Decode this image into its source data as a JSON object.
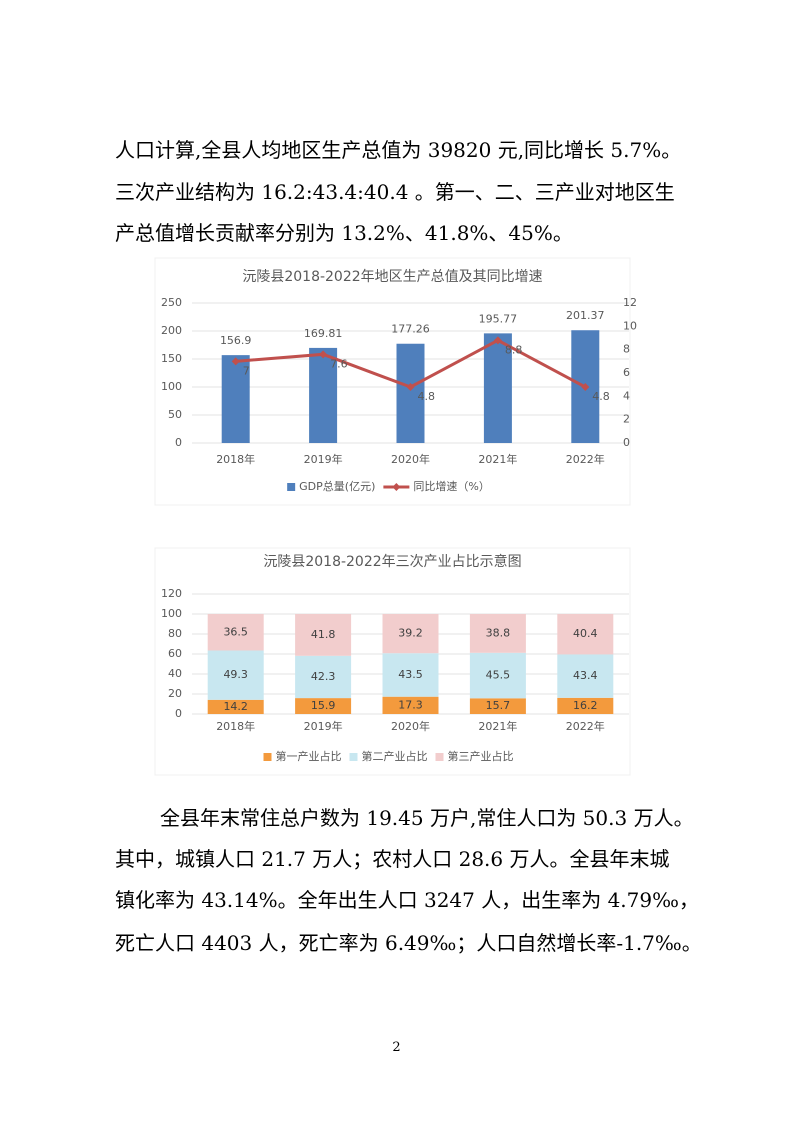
{
  "paragraphs": [
    [
      "人口计算,全县人均地区生产总值为 39820 元,同比增长 5.7%。",
      "三次产业结构为 16.2:43.4:40.4 。第一、二、三产业对地区生",
      "产总值增长贡献率分别为 13.2%、41.8%、45%。"
    ],
    [
      "全县年末常住总户数为 19.45 万户,常住人口为 50.3 万人。",
      "其中，城镇人口 21.7 万人；农村人口 28.6 万人。全县年末城",
      "镇化率为 43.14%。全年出生人口 3247 人，出生率为 4.79‰，",
      "死亡人口 4403 人，死亡率为 6.49‰；人口自然增长率-1.7‰。"
    ]
  ],
  "page_number": "2",
  "chart_data": [
    {
      "type": "bar",
      "title": "沅陵县2018-2022年地区生产总值及其同比增速",
      "categories": [
        "2018年",
        "2019年",
        "2020年",
        "2021年",
        "2022年"
      ],
      "series": [
        {
          "name": "GDP总量(亿元)",
          "color": "#4f7fbc",
          "values": [
            156.9,
            169.81,
            177.26,
            195.77,
            201.37
          ]
        },
        {
          "name": "同比增速（%）",
          "color": "#c0504d",
          "type": "line",
          "axis": "y2",
          "values": [
            7,
            7.6,
            4.8,
            8.8,
            4.8
          ]
        }
      ],
      "ylim": [
        0,
        250
      ],
      "yticks": [
        0,
        50,
        100,
        150,
        200,
        250
      ],
      "y2lim": [
        0,
        12
      ],
      "y2ticks": [
        0,
        2,
        4,
        6,
        8,
        10,
        12
      ],
      "legend": "bottom"
    },
    {
      "type": "stacked-bar",
      "title": "沅陵县2018-2022年三次产业占比示意图",
      "categories": [
        "2018年",
        "2019年",
        "2020年",
        "2021年",
        "2022年"
      ],
      "series": [
        {
          "name": "第一产业占比",
          "color": "#f39a3d",
          "values": [
            14.2,
            15.9,
            17.3,
            15.7,
            16.2
          ]
        },
        {
          "name": "第二产业占比",
          "color": "#c8e7f0",
          "values": [
            49.3,
            42.3,
            43.5,
            45.5,
            43.4
          ]
        },
        {
          "name": "第三产业占比",
          "color": "#f2cdcd",
          "values": [
            36.5,
            41.8,
            39.2,
            38.8,
            40.4
          ]
        }
      ],
      "ylim": [
        0,
        120
      ],
      "yticks": [
        0,
        20,
        40,
        60,
        80,
        100,
        120
      ],
      "legend": "bottom"
    }
  ]
}
